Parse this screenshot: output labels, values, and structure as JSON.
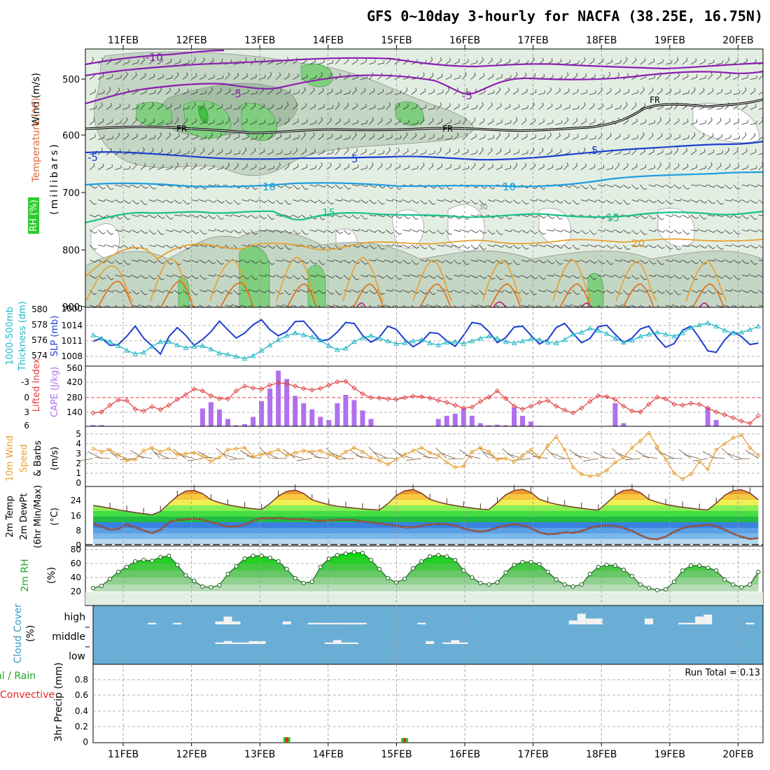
{
  "title": "GFS 0~10day 3-hourly for NACFA (38.25E, 16.75N)",
  "days": [
    "11FEB",
    "12FEB",
    "13FEB",
    "14FEB",
    "15FEB",
    "16FEB",
    "17FEB",
    "18FEB",
    "19FEB",
    "20FEB"
  ],
  "colors": {
    "grid": "#9a9a9a",
    "frame": "#000000",
    "rh_light": "#e3eee3",
    "rh_mid": "#c4d6c4",
    "rh_dark": "#7fbf7f",
    "rh_green": "#55cc55",
    "temp_purple": "#8a1fb0",
    "temp_blue": "#1d3fd0",
    "temp_sky": "#1f9fdf",
    "temp_teal": "#19c08a",
    "temp_orange": "#e8a030",
    "temp_dorange": "#e06a14",
    "freezing": "#000000",
    "slp": "#1d3fd0",
    "thickness": "#22b8c8",
    "lifted": "#e04040",
    "cape": "#b070ee",
    "wind10": "#e8a030",
    "cloud_bg": "#6aaed6",
    "cloud_fill": "#f2f2f2",
    "precip_green": "#22cc22",
    "precip_red": "#ee2222"
  },
  "panels": {
    "upper": {
      "y_labels": [
        "500",
        "600",
        "700",
        "800",
        "900"
      ],
      "axis_labels": [
        "Wind (m/s)",
        "Temperature (°C)",
        "(millibars)",
        "RH (%)"
      ],
      "contour_labels": {
        "t_minus10": "-10",
        "t_minus5": "-5",
        "t_minus5b": "-5",
        "t_minus5c": "-5",
        "t_plus5": "5",
        "t_plus5b": "5",
        "t_10": "10",
        "t_10b": "10",
        "t_15": "15",
        "t_15b": "15",
        "t_20": "20",
        "fr": "FR",
        "fr2": "FR",
        "fr3": "FR",
        "rh30": "30"
      }
    },
    "slp": {
      "left_labels": [
        "580",
        "578",
        "576",
        "574"
      ],
      "right_labels": [
        "1014",
        "1011",
        "1008"
      ],
      "axis_labels": [
        "1000-500mb",
        "Thickness (dm)",
        "SLP (mb)"
      ],
      "top_overlap": "1000"
    },
    "cape": {
      "left_labels": [
        "-3",
        "0",
        "3",
        "6"
      ],
      "right_labels": [
        "560",
        "420",
        "280",
        "140"
      ],
      "axis_labels": [
        "Lifted Index",
        "CAPE (J/kg)"
      ]
    },
    "wind": {
      "y_labels": [
        "5",
        "4",
        "3",
        "2",
        "1",
        "0"
      ],
      "axis_labels": [
        "10m Wind",
        "Speed",
        "& Barbs",
        "(m/s)"
      ]
    },
    "temp": {
      "y_labels": [
        "24",
        "16",
        "8",
        "0"
      ],
      "axis_labels": [
        "2m Temp",
        "2m DewPt",
        "(6hr Min/Max)",
        "(°C)"
      ]
    },
    "rh2m": {
      "y_labels": [
        "80",
        "60",
        "40",
        "20"
      ],
      "axis_labels": [
        "2m RH",
        "(%)"
      ]
    },
    "cloud": {
      "y_labels": [
        "high",
        "middle",
        "low"
      ],
      "axis_labels": [
        "Cloud Cover",
        "(%)"
      ]
    },
    "precip": {
      "y_labels": [
        "0.8",
        "0.6",
        "0.4",
        "0.2",
        "0"
      ],
      "axis_labels": [
        "Total / Rain",
        "Convective",
        "3hr Precip (mm)"
      ],
      "run_total": "Run Total = 0.13"
    }
  },
  "chart_data": [
    {
      "type": "line",
      "title": "SLP (mb) and 1000-500mb Thickness (dm)",
      "x_unit": "hours from 11FEB 00Z (3-hourly)",
      "series": [
        {
          "name": "SLP (mb)",
          "axis": "right",
          "ylim": [
            1006,
            1017
          ],
          "values": [
            1010.5,
            1011.2,
            1009.6,
            1009.8,
            1011.6,
            1013.8,
            1011.2,
            1009.5,
            1007.7,
            1011.5,
            1013.5,
            1011.8,
            1009.6,
            1010.9,
            1012.6,
            1014.9,
            1013.0,
            1011.2,
            1012.3,
            1014.1,
            1015.2,
            1013.0,
            1011.7,
            1012.6,
            1014.8,
            1014.9,
            1012.8,
            1010.6,
            1010.9,
            1012.5,
            1014.6,
            1014.4,
            1011.8,
            1010.3,
            1011.4,
            1013.8,
            1013.1,
            1010.9,
            1009.3,
            1010.4,
            1012.4,
            1012.2,
            1010.6,
            1009.4,
            1011.8,
            1014.6,
            1014.3,
            1012.6,
            1010.2,
            1011.3,
            1013.6,
            1013.8,
            1011.8,
            1009.9,
            1010.9,
            1013.5,
            1014.4,
            1012.2,
            1010.2,
            1011.1,
            1013.7,
            1014.0,
            1012.0,
            1010.2,
            1011.2,
            1013.2,
            1013.8,
            1011.2,
            1009.2,
            1010.0,
            1012.9,
            1013.8,
            1011.2,
            1008.4,
            1008.1,
            1010.8,
            1012.6,
            1011.5,
            1009.8,
            1010.1
          ]
        },
        {
          "name": "1000-500mb Thickness (dm)",
          "axis": "left",
          "ylim": [
            572.5,
            580
          ],
          "values": [
            576.5,
            576.0,
            575.5,
            574.9,
            574.2,
            573.7,
            573.9,
            574.8,
            575.5,
            575.5,
            575.0,
            574.6,
            574.8,
            574.9,
            574.4,
            573.8,
            573.6,
            573.3,
            573.0,
            573.4,
            574.2,
            575.0,
            575.8,
            576.4,
            576.8,
            576.5,
            576.2,
            575.7,
            574.9,
            574.3,
            574.5,
            575.5,
            576.1,
            576.4,
            576.0,
            575.6,
            575.2,
            575.3,
            575.6,
            575.8,
            575.3,
            575.0,
            575.4,
            575.5,
            575.2,
            575.6,
            576.0,
            576.3,
            576.0,
            575.5,
            575.3,
            575.6,
            575.9,
            575.8,
            575.4,
            575.3,
            575.8,
            576.6,
            576.9,
            577.5,
            577.2,
            576.7,
            576.0,
            575.4,
            575.7,
            576.3,
            576.6,
            576.9,
            576.6,
            576.3,
            576.8,
            577.6,
            578.0,
            578.3,
            577.8,
            577.2,
            576.8,
            576.9,
            577.3,
            577.8
          ]
        }
      ]
    },
    {
      "type": "bar",
      "title": "Lifted Index / CAPE (J/kg)",
      "cape_ylim": [
        0,
        560
      ],
      "lifted_ylim": [
        6,
        -6
      ],
      "cape_values": [
        12,
        12,
        0,
        0,
        0,
        0,
        0,
        0,
        0,
        0,
        0,
        0,
        0,
        170,
        230,
        160,
        70,
        10,
        20,
        90,
        240,
        360,
        530,
        450,
        290,
        220,
        160,
        90,
        60,
        220,
        300,
        250,
        150,
        70,
        0,
        0,
        0,
        0,
        0,
        0,
        0,
        70,
        100,
        120,
        170,
        100,
        30,
        10,
        15,
        10,
        180,
        100,
        45,
        5,
        0,
        0,
        0,
        0,
        0,
        0,
        0,
        0,
        220,
        30,
        0,
        0,
        0,
        0,
        0,
        0,
        0,
        0,
        0,
        180,
        60,
        0,
        0,
        0,
        0,
        0
      ],
      "lifted_values": [
        3.2,
        3.0,
        1.6,
        0.5,
        0.6,
        2.4,
        2.8,
        1.9,
        2.5,
        1.6,
        0.4,
        -0.6,
        -1.8,
        -1.4,
        -0.4,
        0.2,
        0.3,
        -1.4,
        -2.4,
        -2.0,
        -1.8,
        -2.6,
        -3.1,
        -2.9,
        -2.4,
        -1.9,
        -1.6,
        -1.9,
        -2.6,
        -3.3,
        -3.4,
        -2.0,
        -0.8,
        0.0,
        0.1,
        0.3,
        0.4,
        0.0,
        -0.3,
        -0.2,
        0.1,
        0.6,
        1.0,
        1.6,
        2.2,
        2.0,
        0.8,
        -0.1,
        -1.4,
        0.2,
        1.8,
        2.4,
        1.8,
        1.0,
        0.6,
        1.8,
        2.6,
        3.2,
        2.2,
        0.8,
        -0.4,
        -0.2,
        0.4,
        1.8,
        2.8,
        3.0,
        1.4,
        -0.1,
        0.3,
        1.4,
        1.6,
        1.2,
        1.4,
        2.2,
        3.0,
        3.6,
        4.2,
        4.9,
        5.4,
        3.8
      ]
    },
    {
      "type": "line",
      "title": "10m Wind Speed (m/s)",
      "ylim": [
        0,
        5
      ],
      "values": [
        3.5,
        3.2,
        3.4,
        2.9,
        2.3,
        2.4,
        3.3,
        3.6,
        3.2,
        3.5,
        2.9,
        3.0,
        3.1,
        2.7,
        2.2,
        2.6,
        3.4,
        3.5,
        3.6,
        2.7,
        2.9,
        3.1,
        3.4,
        2.8,
        3.1,
        3.3,
        3.2,
        3.3,
        2.9,
        2.6,
        3.2,
        3.6,
        3.2,
        2.6,
        2.3,
        1.9,
        2.4,
        2.9,
        3.3,
        3.6,
        3.1,
        2.8,
        2.1,
        1.6,
        1.7,
        3.2,
        3.6,
        3.2,
        2.4,
        2.5,
        2.2,
        2.8,
        3.4,
        2.6,
        3.8,
        4.7,
        3.4,
        1.6,
        0.9,
        0.7,
        0.8,
        1.3,
        2.1,
        2.6,
        3.6,
        4.3,
        5.1,
        3.7,
        2.4,
        1.0,
        0.4,
        0.9,
        2.2,
        1.4,
        3.4,
        4.0,
        4.6,
        4.9,
        3.6,
        2.8
      ]
    },
    {
      "type": "area",
      "title": "2m Temp / 2m DewPt (°C)",
      "ylim": [
        0,
        30
      ],
      "temperature": [
        21.0,
        20.3,
        19.5,
        18.6,
        17.9,
        17.2,
        16.6,
        16.0,
        17.8,
        22.0,
        26.0,
        28.7,
        29.0,
        27.3,
        24.0,
        22.5,
        21.3,
        20.5,
        19.8,
        19.2,
        18.8,
        22.0,
        26.0,
        28.5,
        29.2,
        27.4,
        24.0,
        22.6,
        21.4,
        20.6,
        20.0,
        19.6,
        19.1,
        18.8,
        18.5,
        21.9,
        26.3,
        28.8,
        29.5,
        27.5,
        24.2,
        22.8,
        21.7,
        20.9,
        20.2,
        19.6,
        19.0,
        18.8,
        22.5,
        26.7,
        29.0,
        29.6,
        27.9,
        24.3,
        22.7,
        21.6,
        20.8,
        20.1,
        19.5,
        18.9,
        18.5,
        22.3,
        26.5,
        29.0,
        29.5,
        27.8,
        24.2,
        22.7,
        21.5,
        20.7,
        20.0,
        19.5,
        18.9,
        18.6,
        22.2,
        26.4,
        28.9,
        29.4,
        27.6,
        24.0
      ],
      "dewpoint": [
        11.5,
        9.5,
        8.0,
        8.3,
        10.8,
        9.2,
        7.5,
        6.2,
        8.0,
        12.0,
        13.2,
        13.5,
        14.0,
        13.4,
        12.0,
        10.8,
        9.6,
        9.7,
        10.6,
        12.8,
        14.2,
        14.0,
        14.3,
        13.8,
        13.5,
        13.6,
        13.1,
        12.7,
        12.9,
        13.3,
        13.4,
        13.1,
        12.4,
        11.9,
        11.3,
        10.7,
        10.0,
        9.2,
        9.2,
        10.0,
        10.8,
        11.1,
        10.9,
        10.2,
        8.6,
        7.5,
        6.9,
        7.6,
        9.2,
        10.2,
        11.0,
        10.3,
        8.9,
        6.5,
        5.5,
        5.8,
        6.6,
        6.3,
        7.2,
        8.9,
        9.9,
        10.3,
        9.9,
        8.9,
        7.3,
        5.0,
        3.2,
        2.8,
        4.3,
        6.8,
        8.8,
        9.8,
        10.1,
        10.8,
        9.8,
        8.0,
        5.8,
        4.2,
        3.0,
        3.5
      ]
    },
    {
      "type": "area",
      "title": "2m RH (%)",
      "ylim": [
        10,
        85
      ],
      "values": [
        25,
        28,
        38,
        48,
        55,
        63,
        65,
        64,
        69,
        71,
        58,
        43,
        35,
        27,
        26,
        29,
        45,
        56,
        67,
        71,
        71,
        68,
        63,
        52,
        39,
        32,
        34,
        55,
        67,
        72,
        74,
        76,
        75,
        65,
        52,
        39,
        33,
        38,
        53,
        63,
        70,
        72,
        70,
        65,
        50,
        40,
        32,
        30,
        33,
        47,
        58,
        62,
        62,
        59,
        48,
        37,
        30,
        27,
        30,
        45,
        55,
        58,
        57,
        51,
        42,
        30,
        25,
        22,
        23,
        34,
        50,
        57,
        57,
        54,
        50,
        37,
        30,
        26,
        30,
        48
      ]
    },
    {
      "type": "bar",
      "title": "Cloud Cover (%)",
      "levels": [
        "high",
        "middle",
        "low"
      ],
      "high_values": [
        0,
        0,
        0,
        0,
        0,
        0,
        0,
        8,
        0,
        0,
        8,
        0,
        0,
        0,
        0,
        15,
        40,
        15,
        0,
        0,
        0,
        0,
        0,
        15,
        0,
        0,
        8,
        8,
        8,
        8,
        8,
        8,
        8,
        0,
        0,
        0,
        0,
        0,
        0,
        8,
        0,
        0,
        0,
        0,
        0,
        0,
        0,
        0,
        0,
        0,
        0,
        0,
        0,
        0,
        0,
        0,
        0,
        20,
        55,
        30,
        30,
        0,
        0,
        0,
        0,
        0,
        30,
        0,
        0,
        0,
        8,
        8,
        40,
        50,
        0,
        0,
        0,
        0,
        8,
        0
      ],
      "mid_values": [
        0,
        0,
        0,
        0,
        0,
        0,
        0,
        0,
        0,
        0,
        0,
        0,
        0,
        0,
        0,
        8,
        15,
        8,
        8,
        15,
        15,
        0,
        0,
        0,
        0,
        0,
        0,
        0,
        8,
        20,
        8,
        8,
        0,
        0,
        0,
        0,
        0,
        0,
        0,
        0,
        15,
        0,
        8,
        20,
        8,
        0,
        0,
        0,
        0,
        0,
        0,
        0,
        0,
        0,
        0,
        0,
        0,
        0,
        0,
        0,
        0,
        0,
        0,
        0,
        0,
        0,
        0,
        0,
        0,
        0,
        0,
        0,
        0,
        0,
        0,
        0,
        0,
        0,
        0,
        0
      ]
    },
    {
      "type": "bar",
      "title": "3hr Precip (mm)",
      "ylim": [
        0,
        0.9
      ],
      "values": [
        0,
        0,
        0,
        0,
        0,
        0,
        0,
        0,
        0,
        0,
        0,
        0,
        0,
        0,
        0,
        0,
        0,
        0,
        0,
        0,
        0,
        0,
        0,
        0.07,
        0,
        0,
        0,
        0,
        0,
        0,
        0,
        0,
        0,
        0,
        0,
        0,
        0,
        0.06,
        0,
        0,
        0,
        0,
        0,
        0,
        0,
        0,
        0,
        0,
        0,
        0,
        0,
        0,
        0,
        0,
        0,
        0,
        0,
        0,
        0,
        0,
        0,
        0,
        0,
        0,
        0,
        0,
        0,
        0,
        0,
        0,
        0,
        0,
        0,
        0,
        0,
        0,
        0,
        0,
        0,
        0
      ],
      "run_total_mm": 0.13
    }
  ]
}
